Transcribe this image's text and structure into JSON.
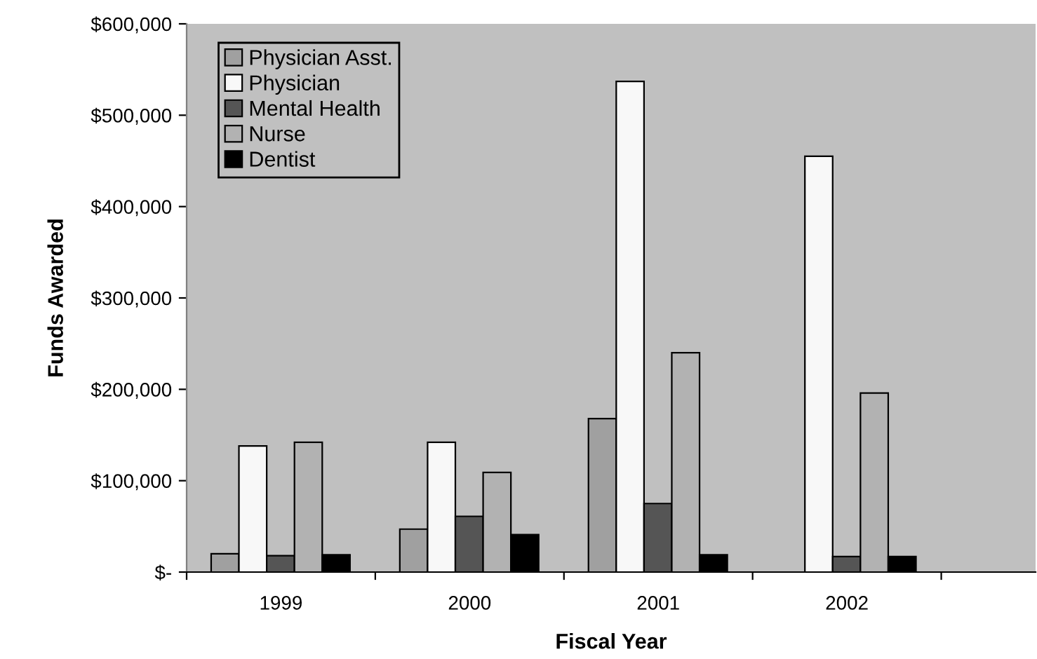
{
  "chart_data": {
    "type": "bar",
    "xlabel": "Fiscal Year",
    "ylabel": "Funds Awarded",
    "categories": [
      "1999",
      "2000",
      "2001",
      "2002"
    ],
    "series": [
      {
        "name": "Physician Asst.",
        "color": "#a0a0a0",
        "values": [
          20000,
          47000,
          168000,
          null
        ]
      },
      {
        "name": "Physician",
        "color": "#f8f8f8",
        "values": [
          138000,
          142000,
          537000,
          455000
        ]
      },
      {
        "name": "Mental Health",
        "color": "#555555",
        "values": [
          18000,
          61000,
          75000,
          17000
        ]
      },
      {
        "name": "Nurse",
        "color": "#b2b2b2",
        "values": [
          142000,
          109000,
          240000,
          196000
        ]
      },
      {
        "name": "Dentist",
        "color": "#000000",
        "values": [
          19000,
          41000,
          19000,
          17000
        ]
      }
    ],
    "ylim": [
      0,
      600000
    ],
    "yticks": [
      {
        "value": 0,
        "label": "$-"
      },
      {
        "value": 100000,
        "label": "$100,000"
      },
      {
        "value": 200000,
        "label": "$200,000"
      },
      {
        "value": 300000,
        "label": "$300,000"
      },
      {
        "value": 400000,
        "label": "$400,000"
      },
      {
        "value": 500000,
        "label": "$500,000"
      },
      {
        "value": 600000,
        "label": "$600,000"
      }
    ],
    "grid": false,
    "legend": "top left"
  }
}
